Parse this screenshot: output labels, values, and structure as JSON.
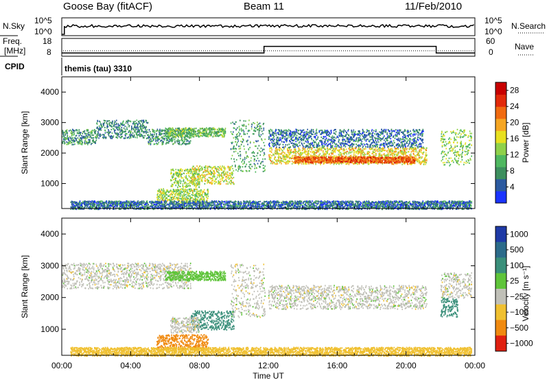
{
  "header": {
    "station": "Goose Bay (fitACF)",
    "beam": "Beam 11",
    "date": "11/Feb/2010"
  },
  "params": {
    "nsky_label": "N.Sky",
    "nsky_ticks": [
      "10^5",
      "10^0"
    ],
    "nsearch_label": "N.Search",
    "nsearch_ticks": [
      "10^5",
      "10^0"
    ],
    "freq_label_1": "Freq.",
    "freq_label_2": "[MHz]",
    "freq_ticks": [
      "18",
      "8"
    ],
    "nave_label": "Nave",
    "nave_ticks": [
      "60",
      "0"
    ],
    "cpid_label": "CPID",
    "cpid_value": "themis (tau) 3310",
    "freq_series_mhz": [
      {
        "from": "00:00",
        "to": "11:45",
        "value": 10
      },
      {
        "from": "11:45",
        "to": "21:45",
        "value": 14
      },
      {
        "from": "21:45",
        "to": "24:00",
        "value": 10
      }
    ]
  },
  "chart_data": [
    {
      "type": "heatmap",
      "panel": "power",
      "title": "",
      "ylabel": "Slant Range [km]",
      "xlabel": "Time UT",
      "yticks": [
        "1000",
        "2000",
        "3000",
        "4000"
      ],
      "ylim": [
        180,
        4500
      ],
      "xticks": [
        "00:00",
        "04:00",
        "08:00",
        "12:00",
        "16:00",
        "20:00",
        "00:00"
      ],
      "xlim_hours": [
        0,
        24
      ],
      "colorbar": {
        "label": "Power [dB]",
        "ticks": [
          "4",
          "8",
          "12",
          "16",
          "20",
          "24",
          "28"
        ],
        "range": [
          0,
          30
        ]
      },
      "echo_regions": [
        {
          "t_start": 0.0,
          "t_end": 2.0,
          "range_km": [
            2300,
            2800
          ],
          "value_db": 9
        },
        {
          "t_start": 2.0,
          "t_end": 5.0,
          "range_km": [
            2500,
            3100
          ],
          "value_db": 8
        },
        {
          "t_start": 5.0,
          "t_end": 7.5,
          "range_km": [
            2300,
            2800
          ],
          "value_db": 9
        },
        {
          "t_start": 6.0,
          "t_end": 9.5,
          "range_km": [
            2550,
            2850
          ],
          "value_db": 12
        },
        {
          "t_start": 6.3,
          "t_end": 8.0,
          "range_km": [
            900,
            1500
          ],
          "value_db": 14
        },
        {
          "t_start": 7.5,
          "t_end": 10.0,
          "range_km": [
            1000,
            1600
          ],
          "value_db": 17
        },
        {
          "t_start": 5.5,
          "t_end": 8.5,
          "range_km": [
            380,
            850
          ],
          "value_db": 15
        },
        {
          "t_start": 0.5,
          "t_end": 23.8,
          "range_km": [
            180,
            450
          ],
          "value_db": 6
        },
        {
          "t_start": 9.8,
          "t_end": 11.8,
          "range_km": [
            1400,
            3100
          ],
          "value_db": 10
        },
        {
          "t_start": 12.0,
          "t_end": 21.2,
          "range_km": [
            1650,
            2200
          ],
          "value_db": 18
        },
        {
          "t_start": 13.5,
          "t_end": 20.5,
          "range_km": [
            1700,
            1900
          ],
          "value_db": 25
        },
        {
          "t_start": 12.0,
          "t_end": 21.0,
          "range_km": [
            2200,
            2800
          ],
          "value_db": 6
        },
        {
          "t_start": 22.0,
          "t_end": 23.8,
          "range_km": [
            1600,
            2800
          ],
          "value_db": 14
        }
      ]
    },
    {
      "type": "heatmap",
      "panel": "velocity",
      "title": "",
      "ylabel": "Slant Range [km]",
      "xlabel": "Time UT",
      "yticks": [
        "1000",
        "2000",
        "3000",
        "4000"
      ],
      "ylim": [
        180,
        4500
      ],
      "xticks": [
        "00:00",
        "04:00",
        "08:00",
        "12:00",
        "16:00",
        "20:00",
        "00:00"
      ],
      "xlim_hours": [
        0,
        24
      ],
      "colorbar": {
        "label": "Velocity [m s⁻¹]",
        "ticks": [
          "1000",
          "500",
          "100",
          "25",
          "−25",
          "−100",
          "−500",
          "−1000"
        ]
      },
      "echo_regions": [
        {
          "t_start": 0.0,
          "t_end": 7.5,
          "range_km": [
            2300,
            3100
          ],
          "value_ms": 0
        },
        {
          "t_start": 6.0,
          "t_end": 9.5,
          "range_km": [
            2550,
            2850
          ],
          "value_ms": 60
        },
        {
          "t_start": 7.5,
          "t_end": 10.0,
          "range_km": [
            1000,
            1600
          ],
          "value_ms": 150
        },
        {
          "t_start": 6.3,
          "t_end": 8.0,
          "range_km": [
            900,
            1400
          ],
          "value_ms": 0
        },
        {
          "t_start": 5.5,
          "t_end": 8.5,
          "range_km": [
            380,
            850
          ],
          "value_ms": -150
        },
        {
          "t_start": 0.5,
          "t_end": 23.8,
          "range_km": [
            180,
            450
          ],
          "value_ms": -60
        },
        {
          "t_start": 9.8,
          "t_end": 11.8,
          "range_km": [
            1400,
            3100
          ],
          "value_ms": 0
        },
        {
          "t_start": 12.0,
          "t_end": 21.2,
          "range_km": [
            1650,
            2400
          ],
          "value_ms": 0
        },
        {
          "t_start": 22.0,
          "t_end": 23.8,
          "range_km": [
            2000,
            2800
          ],
          "value_ms": 0
        },
        {
          "t_start": 22.0,
          "t_end": 23.0,
          "range_km": [
            1400,
            2000
          ],
          "value_ms": 150
        }
      ]
    }
  ]
}
